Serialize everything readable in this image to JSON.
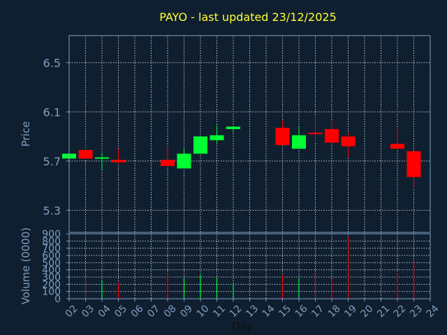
{
  "title": "PAYO - last updated 23/12/2025",
  "chart_data": [
    {
      "type": "candlestick",
      "ylabel": "Price",
      "ylim": [
        5.12,
        6.72
      ],
      "yticks": [
        5.3,
        5.7,
        6.1,
        6.5
      ],
      "grid": true,
      "x_range": [
        2,
        24
      ],
      "candles": [
        {
          "day": 2,
          "open": 5.72,
          "high": 5.76,
          "low": 5.72,
          "close": 5.76
        },
        {
          "day": 3,
          "open": 5.79,
          "high": 5.87,
          "low": 5.72,
          "close": 5.72
        },
        {
          "day": 4,
          "open": 5.72,
          "high": 5.77,
          "low": 5.63,
          "close": 5.73
        },
        {
          "day": 5,
          "open": 5.71,
          "high": 5.8,
          "low": 5.68,
          "close": 5.69
        },
        {
          "day": 8,
          "open": 5.71,
          "high": 5.82,
          "low": 5.66,
          "close": 5.66
        },
        {
          "day": 9,
          "open": 5.64,
          "high": 5.8,
          "low": 5.64,
          "close": 5.76
        },
        {
          "day": 10,
          "open": 5.76,
          "high": 5.9,
          "low": 5.76,
          "close": 5.9
        },
        {
          "day": 11,
          "open": 5.87,
          "high": 5.99,
          "low": 5.85,
          "close": 5.91
        },
        {
          "day": 12,
          "open": 5.96,
          "high": 5.98,
          "low": 5.93,
          "close": 5.98
        },
        {
          "day": 15,
          "open": 5.97,
          "high": 6.03,
          "low": 5.83,
          "close": 5.83
        },
        {
          "day": 16,
          "open": 5.8,
          "high": 5.98,
          "low": 5.8,
          "close": 5.91
        },
        {
          "day": 17,
          "open": 5.93,
          "high": 6.07,
          "low": 5.86,
          "close": 5.92
        },
        {
          "day": 18,
          "open": 5.96,
          "high": 6.03,
          "low": 5.83,
          "close": 5.85
        },
        {
          "day": 19,
          "open": 5.9,
          "high": 5.93,
          "low": 5.73,
          "close": 5.82
        },
        {
          "day": 22,
          "open": 5.84,
          "high": 5.97,
          "low": 5.8,
          "close": 5.8
        },
        {
          "day": 23,
          "open": 5.78,
          "high": 5.78,
          "low": 5.48,
          "close": 5.57
        }
      ],
      "colors": {
        "up": "#00ff33",
        "down": "#ff0000"
      }
    },
    {
      "type": "bar",
      "ylabel": "Volume (0000)",
      "xlabel": "Day",
      "ylim": [
        0,
        900
      ],
      "yticks": [
        0,
        100,
        200,
        300,
        400,
        500,
        600,
        700,
        800,
        900
      ],
      "xticks": [
        "02",
        "03",
        "04",
        "05",
        "06",
        "07",
        "08",
        "09",
        "10",
        "11",
        "12",
        "13",
        "14",
        "15",
        "16",
        "17",
        "18",
        "19",
        "20",
        "21",
        "22",
        "23",
        "24"
      ],
      "grid": true,
      "bars": [
        {
          "day": 3,
          "value": 300,
          "color": "#ff0000"
        },
        {
          "day": 4,
          "value": 250,
          "color": "#00ff33"
        },
        {
          "day": 5,
          "value": 220,
          "color": "#ff0000"
        },
        {
          "day": 8,
          "value": 350,
          "color": "#ff0000"
        },
        {
          "day": 9,
          "value": 280,
          "color": "#00ff33"
        },
        {
          "day": 10,
          "value": 330,
          "color": "#00ff33"
        },
        {
          "day": 11,
          "value": 290,
          "color": "#00ff33"
        },
        {
          "day": 12,
          "value": 220,
          "color": "#00ff33"
        },
        {
          "day": 15,
          "value": 330,
          "color": "#ff0000"
        },
        {
          "day": 16,
          "value": 290,
          "color": "#00ff33"
        },
        {
          "day": 17,
          "value": 350,
          "color": "#ff0000"
        },
        {
          "day": 18,
          "value": 280,
          "color": "#ff0000"
        },
        {
          "day": 19,
          "value": 860,
          "color": "#ff0000"
        },
        {
          "day": 22,
          "value": 360,
          "color": "#ff0000"
        },
        {
          "day": 23,
          "value": 520,
          "color": "#ff0000"
        }
      ]
    }
  ]
}
